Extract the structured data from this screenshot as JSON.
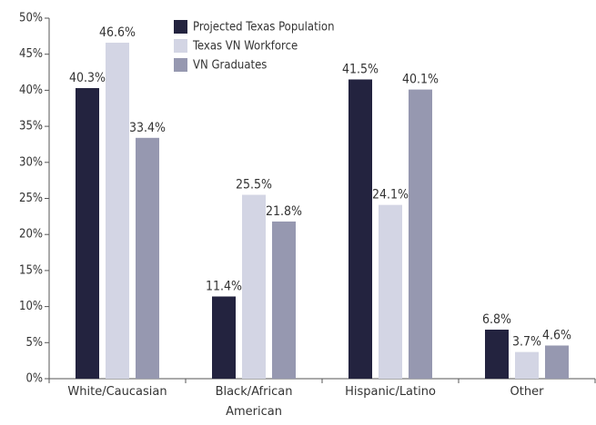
{
  "chart_data": {
    "type": "bar",
    "categories": [
      "White/Caucasian",
      "Black/African American",
      "Hispanic/Latino",
      "Other"
    ],
    "series": [
      {
        "name": "Projected Texas Population",
        "color": "#23233f",
        "values": [
          40.3,
          11.4,
          41.5,
          6.8
        ],
        "value_labels": [
          "40.3%",
          "11.4%",
          "41.5%",
          "6.8%"
        ]
      },
      {
        "name": "Texas VN Workforce",
        "color": "#d3d5e4",
        "values": [
          46.6,
          25.5,
          24.1,
          3.7
        ],
        "value_labels": [
          "46.6%",
          "25.5%",
          "24.1%",
          "3.7%"
        ]
      },
      {
        "name": "VN Graduates",
        "color": "#9698b0",
        "values": [
          33.4,
          21.8,
          40.1,
          4.6
        ],
        "value_labels": [
          "33.4%",
          "21.8%",
          "40.1%",
          "4.6%"
        ]
      }
    ],
    "ylim": [
      0,
      50
    ],
    "yticks": [
      {
        "value": 0,
        "label": "0%"
      },
      {
        "value": 5,
        "label": "5%"
      },
      {
        "value": 10,
        "label": "10%"
      },
      {
        "value": 15,
        "label": "15%"
      },
      {
        "value": 20,
        "label": "20%"
      },
      {
        "value": 25,
        "label": "25%"
      },
      {
        "value": 30,
        "label": "30%"
      },
      {
        "value": 35,
        "label": "35%"
      },
      {
        "value": 40,
        "label": "40%"
      },
      {
        "value": 45,
        "label": "45%"
      },
      {
        "value": 50,
        "label": "50%"
      }
    ],
    "legend": "top"
  }
}
